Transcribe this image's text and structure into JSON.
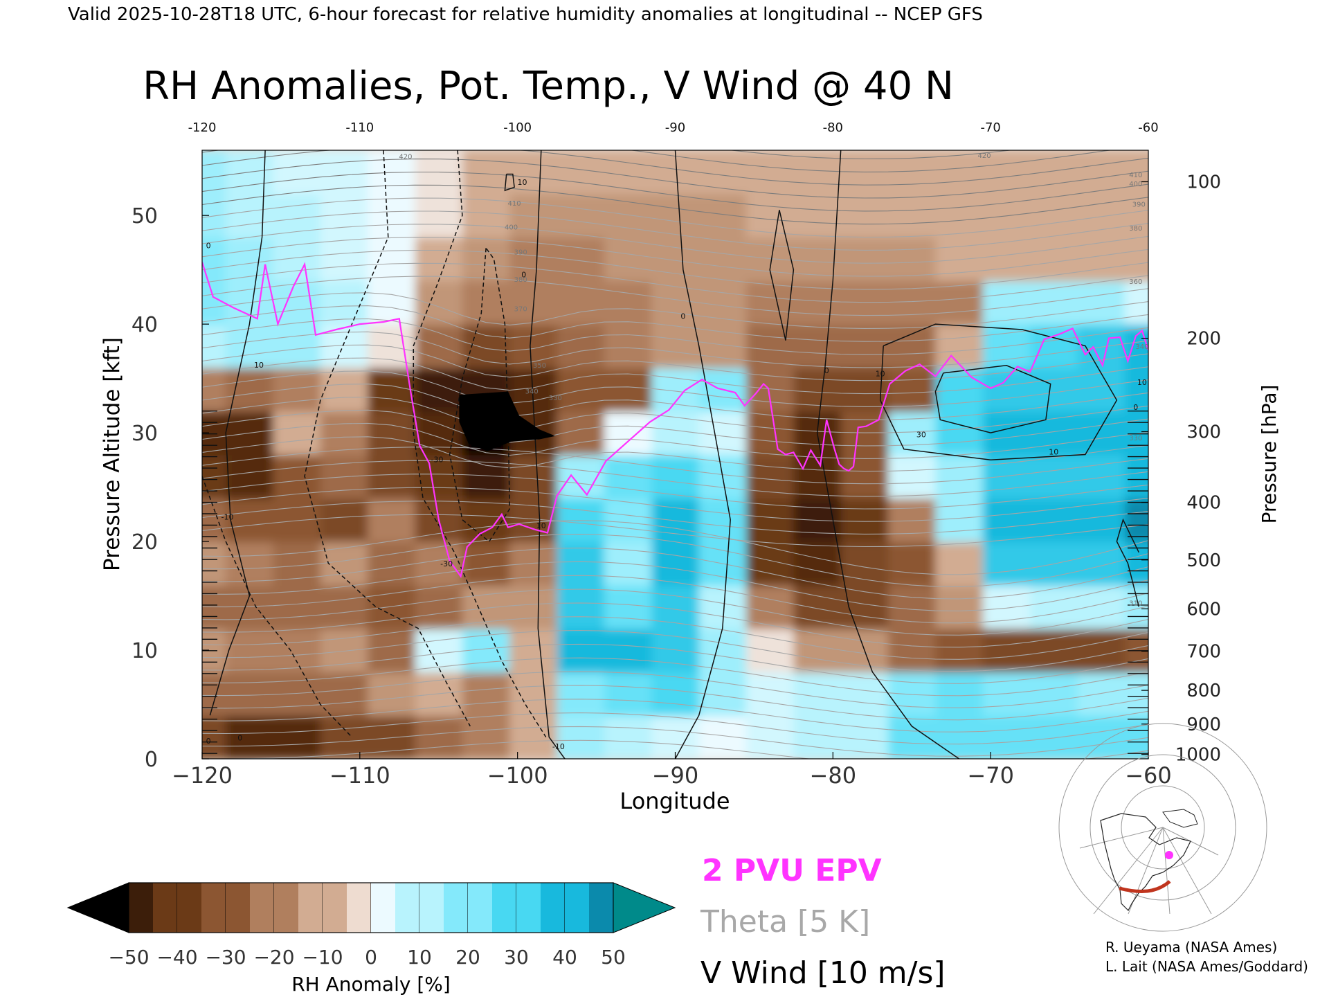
{
  "header": {
    "valid_line": "Valid 2025-10-28T18 UTC, 6-hour forecast for relative humidity anomalies at longitudinal -- NCEP GFS"
  },
  "chart_data": {
    "type": "heatmap",
    "title": "RH Anomalies, Pot. Temp., V Wind @ 40 N",
    "xlabel": "Longitude",
    "ylabel_left": "Pressure Altitude [kft]",
    "ylabel_right": "Pressure [hPa]",
    "xlim": [
      -120,
      -60
    ],
    "ylim": [
      0,
      56
    ],
    "x_ticks": [
      -120,
      -110,
      -100,
      -90,
      -80,
      -70,
      -60
    ],
    "x_tick_labels": [
      "−120",
      "−110",
      "−100",
      "−90",
      "−80",
      "−70",
      "−60"
    ],
    "top_tick_labels": [
      "-120",
      "-110",
      "-100",
      "-90",
      "-80",
      "-70",
      "-60"
    ],
    "y_ticks": [
      0,
      10,
      20,
      30,
      40,
      50
    ],
    "y_tick_labels": [
      "0",
      "10",
      "20",
      "30",
      "40",
      "50"
    ],
    "pressure_ticks": [
      {
        "label": "100",
        "kft": 53.1
      },
      {
        "label": "200",
        "kft": 38.7
      },
      {
        "label": "300",
        "kft": 30.1
      },
      {
        "label": "400",
        "kft": 23.6
      },
      {
        "label": "500",
        "kft": 18.3
      },
      {
        "label": "600",
        "kft": 13.8
      },
      {
        "label": "700",
        "kft": 9.9
      },
      {
        "label": "800",
        "kft": 6.3
      },
      {
        "label": "900",
        "kft": 3.2
      },
      {
        "label": "1000",
        "kft": 0.4
      }
    ],
    "rh_anomaly_field": {
      "lon": [
        -120,
        -117,
        -114,
        -111,
        -108,
        -105,
        -102,
        -99,
        -96,
        -93,
        -90,
        -87,
        -84,
        -81,
        -78,
        -75,
        -72,
        -69,
        -66,
        -63,
        -60
      ],
      "kft": [
        2,
        6,
        10,
        14,
        18,
        22,
        26,
        30,
        34,
        38,
        42,
        46,
        50,
        54
      ],
      "values": [
        [
          -30,
          -40,
          -40,
          -30,
          -30,
          -20,
          -15,
          -5,
          20,
          15,
          10,
          5,
          10,
          15,
          15,
          30,
          30,
          30,
          30,
          30,
          30
        ],
        [
          -20,
          -20,
          -20,
          -20,
          -10,
          -5,
          -15,
          -5,
          25,
          30,
          35,
          20,
          10,
          15,
          15,
          25,
          30,
          25,
          25,
          20,
          20
        ],
        [
          -10,
          -15,
          -15,
          -10,
          -20,
          10,
          25,
          -5,
          45,
          45,
          40,
          20,
          0,
          -10,
          -10,
          -20,
          -25,
          -30,
          -30,
          -30,
          -25
        ],
        [
          -20,
          -20,
          -20,
          -20,
          -25,
          -20,
          -10,
          -10,
          40,
          30,
          40,
          15,
          -15,
          -30,
          -30,
          -20,
          -10,
          10,
          15,
          15,
          20
        ],
        [
          -10,
          -15,
          -20,
          -10,
          -20,
          -15,
          -25,
          -15,
          40,
          20,
          45,
          30,
          -35,
          -40,
          -30,
          -25,
          -5,
          40,
          40,
          40,
          45
        ],
        [
          -20,
          -25,
          -25,
          -30,
          -15,
          -30,
          -35,
          -30,
          35,
          25,
          45,
          30,
          -35,
          -45,
          -35,
          -15,
          20,
          45,
          45,
          45,
          50
        ],
        [
          -35,
          -40,
          -25,
          -20,
          -30,
          -35,
          -45,
          -30,
          20,
          30,
          35,
          25,
          -30,
          -40,
          -25,
          10,
          20,
          40,
          40,
          40,
          45
        ],
        [
          -40,
          -40,
          -5,
          -15,
          -30,
          -40,
          -55,
          -40,
          -20,
          5,
          15,
          10,
          -25,
          -40,
          -25,
          20,
          35,
          45,
          45,
          45,
          45
        ],
        [
          -15,
          -20,
          -15,
          -5,
          -35,
          -45,
          -45,
          -40,
          -25,
          -25,
          20,
          25,
          -20,
          -30,
          -30,
          -25,
          35,
          40,
          40,
          40,
          45
        ],
        [
          15,
          20,
          20,
          10,
          0,
          -20,
          -30,
          -25,
          -20,
          -15,
          -10,
          -10,
          -20,
          -20,
          -20,
          -20,
          -5,
          30,
          35,
          40,
          45
        ],
        [
          25,
          20,
          20,
          15,
          5,
          -10,
          -15,
          -15,
          -15,
          -15,
          -10,
          -10,
          -15,
          -15,
          -15,
          -15,
          -15,
          20,
          20,
          20,
          10
        ],
        [
          25,
          20,
          15,
          10,
          5,
          -5,
          -10,
          -15,
          -15,
          -10,
          -10,
          -10,
          -10,
          -10,
          -10,
          -10,
          -5,
          -5,
          -5,
          -5,
          -5
        ],
        [
          20,
          15,
          15,
          10,
          5,
          0,
          -5,
          -10,
          -10,
          -10,
          -10,
          -10,
          -5,
          -5,
          -5,
          -5,
          -5,
          -5,
          -5,
          -5,
          -5
        ],
        [
          20,
          15,
          10,
          10,
          5,
          0,
          -5,
          -5,
          -5,
          -5,
          -5,
          -5,
          -5,
          -5,
          -5,
          -5,
          -5,
          -5,
          -5,
          -5,
          -5
        ]
      ]
    },
    "colorbar": {
      "label": "RH Anomaly [%]",
      "ticks": [
        -50,
        -40,
        -30,
        -20,
        -10,
        0,
        10,
        20,
        30,
        40,
        50
      ],
      "tick_labels": [
        "−50",
        "−40",
        "−30",
        "−20",
        "−10",
        "0",
        "10",
        "20",
        "30",
        "40",
        "50"
      ],
      "colors": [
        "#000000",
        "#3c1e0a",
        "#6b3a17",
        "#8c5632",
        "#b07f5e",
        "#d2ac92",
        "#eedcd0",
        "#ecfaff",
        "#b8f3fd",
        "#84e9fb",
        "#48d8f2",
        "#18b9dd",
        "#0b8aac",
        "#008a8a"
      ]
    },
    "pv_line": {
      "name": "2 PVU EPV",
      "color": "#ff33ff",
      "lon": [
        -120,
        -119.3,
        -118,
        -116.5,
        -116,
        -115.2,
        -114.2,
        -113.5,
        -112.8,
        -111.5,
        -110,
        -108.5,
        -107.5,
        -106.8,
        -106.2,
        -105.6,
        -105,
        -104.3,
        -103.6,
        -103.2,
        -102.4,
        -101.6,
        -101,
        -100.6,
        -99.9,
        -98.9,
        -98.1,
        -97.5,
        -96.6,
        -95.6,
        -94.4,
        -93,
        -91.6,
        -90.4,
        -89.4,
        -88.3,
        -87.3,
        -86.2,
        -85.6,
        -84.9,
        -84.4,
        -84.1,
        -83.5,
        -83.0,
        -82.5,
        -81.9,
        -81.4,
        -80.8,
        -80.4,
        -79.9,
        -79.6,
        -79.3,
        -79.0,
        -78.7,
        -78.4,
        -77.9,
        -77.1,
        -76.4,
        -75.4,
        -74.5,
        -73.5,
        -72.5,
        -71.2,
        -70.0,
        -69.2,
        -68.3,
        -67.5,
        -66.6,
        -65.6,
        -64.8,
        -64.0,
        -63.5,
        -62.9,
        -62.5,
        -61.8,
        -61.3,
        -60.8,
        -60.4,
        -60
      ],
      "kft": [
        45.7,
        42.5,
        41.5,
        40.5,
        45.5,
        40,
        43.5,
        45.5,
        39,
        39.5,
        40,
        40.2,
        40.5,
        34,
        28.8,
        27.2,
        22,
        18.2,
        16.8,
        19.5,
        20.7,
        21.3,
        22.5,
        21.3,
        21.6,
        21.1,
        20.8,
        24.2,
        26.1,
        24.3,
        27.4,
        29.2,
        31.0,
        32.1,
        33.9,
        34.9,
        34.1,
        33.7,
        32.5,
        33.6,
        34.5,
        34.1,
        28.5,
        28.0,
        28.2,
        26.7,
        28.4,
        27.0,
        31.2,
        28.5,
        27.1,
        26.7,
        26.5,
        26.9,
        30.5,
        30.6,
        31.2,
        34.5,
        35.7,
        36.3,
        35.2,
        37.1,
        35.1,
        34.1,
        34.6,
        36.1,
        35.6,
        38.6,
        39.1,
        39.6,
        37.2,
        37.9,
        36.2,
        38.7,
        38.8,
        36.6,
        38.9,
        39.4,
        37.6
      ]
    },
    "legend_entries": [
      {
        "label": "2 PVU EPV",
        "color": "#ff33ff"
      },
      {
        "label": "Theta [5 K]",
        "color": "#a0a0a0"
      },
      {
        "label": "V Wind [10 m/s]",
        "color": "#000000"
      }
    ],
    "theta_labels": [
      {
        "text": "420",
        "lon": -107.1,
        "kft": 55.2
      },
      {
        "text": "410",
        "lon": -100.2,
        "kft": 50.9
      },
      {
        "text": "400",
        "lon": -100.4,
        "kft": 48.7
      },
      {
        "text": "390",
        "lon": -99.8,
        "kft": 46.4
      },
      {
        "text": "380",
        "lon": -99.8,
        "kft": 43.9
      },
      {
        "text": "370",
        "lon": -99.8,
        "kft": 41.2
      },
      {
        "text": "350",
        "lon": -98.6,
        "kft": 36.0
      },
      {
        "text": "340",
        "lon": -99.1,
        "kft": 33.6
      },
      {
        "text": "330",
        "lon": -97.6,
        "kft": 33.0
      },
      {
        "text": "420",
        "lon": -70.4,
        "kft": 55.3
      },
      {
        "text": "410",
        "lon": -60.8,
        "kft": 53.5
      },
      {
        "text": "400",
        "lon": -60.8,
        "kft": 52.7
      },
      {
        "text": "390",
        "lon": -60.6,
        "kft": 50.8
      },
      {
        "text": "380",
        "lon": -60.8,
        "kft": 48.6
      },
      {
        "text": "360",
        "lon": -60.8,
        "kft": 43.7
      },
      {
        "text": "340",
        "lon": -60.4,
        "kft": 37.7
      },
      {
        "text": "330",
        "lon": -60.8,
        "kft": 29.3
      },
      {
        "text": "310",
        "lon": -60.8,
        "kft": 14.1
      }
    ],
    "wind_labels": [
      {
        "text": "0",
        "lon": -99.6,
        "kft": 44.3
      },
      {
        "text": "10",
        "lon": -99.7,
        "kft": 52.8
      },
      {
        "text": "10",
        "lon": -116.4,
        "kft": 36.0
      },
      {
        "text": "-10",
        "lon": -118.4,
        "kft": 22.0
      },
      {
        "text": "0",
        "lon": -119.6,
        "kft": 47.0
      },
      {
        "text": "-30",
        "lon": -105.1,
        "kft": 27.3
      },
      {
        "text": "-30",
        "lon": -104.5,
        "kft": 17.7
      },
      {
        "text": "-10",
        "lon": -97.4,
        "kft": 0.9
      },
      {
        "text": "10",
        "lon": -98.5,
        "kft": 21.2
      },
      {
        "text": "0",
        "lon": -89.5,
        "kft": 40.5
      },
      {
        "text": "0",
        "lon": -80.4,
        "kft": 35.5
      },
      {
        "text": "10",
        "lon": -77.0,
        "kft": 35.2
      },
      {
        "text": "30",
        "lon": -74.4,
        "kft": 29.6
      },
      {
        "text": "10",
        "lon": -66.0,
        "kft": 28.0
      },
      {
        "text": "10",
        "lon": -60.4,
        "kft": 34.4
      },
      {
        "text": "0",
        "lon": -60.8,
        "kft": 32.1
      },
      {
        "text": "0",
        "lon": -119.6,
        "kft": 1.4
      },
      {
        "text": "0",
        "lon": -117.6,
        "kft": 1.7
      }
    ]
  },
  "inset_map": {
    "section_color": "#c0341d",
    "marker_color": "#ff33ff"
  },
  "credits": {
    "line1": "R. Ueyama (NASA Ames)",
    "line2": "L. Lait (NASA Ames/Goddard)"
  }
}
